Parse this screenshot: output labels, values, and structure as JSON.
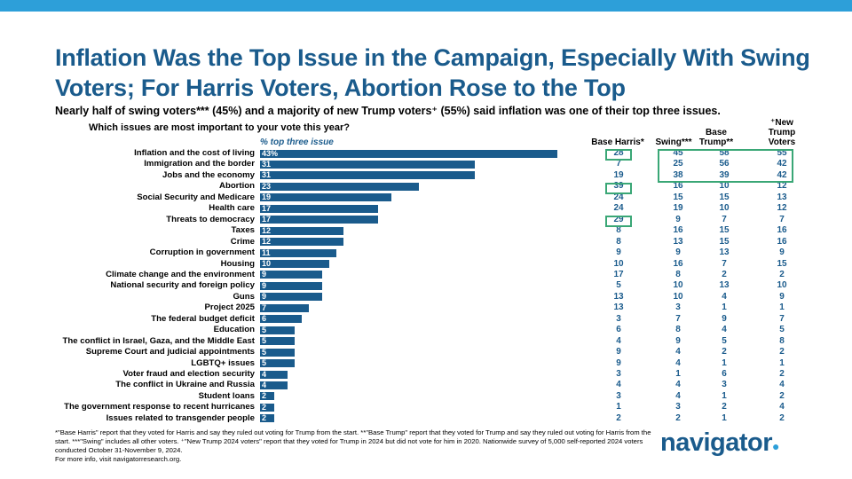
{
  "title": "Inflation Was the Top Issue in the Campaign, Especially With Swing Voters; For Harris Voters, Abortion Rose to the Top",
  "subtitle": "Nearly half of swing voters*** (45%) and a majority of new Trump voters⁺ (55%) said inflation was one of their top three issues.",
  "question": "Which issues are most important to your vote this year?",
  "bar_header": "% top three issue",
  "columns": {
    "base_harris": "Base Harris*",
    "swing": "Swing***",
    "base_trump_1": "Base",
    "base_trump_2": "Trump**",
    "new_trump_1": "⁺New",
    "new_trump_2": "Trump",
    "new_trump_3": "Voters"
  },
  "chart_data": {
    "type": "bar",
    "orientation": "horizontal",
    "xlim": [
      0,
      100
    ],
    "categories": [
      "Inflation and the cost of living",
      "Immigration and the border",
      "Jobs and the economy",
      "Abortion",
      "Social Security and Medicare",
      "Health care",
      "Threats to democracy",
      "Taxes",
      "Crime",
      "Corruption in government",
      "Housing",
      "Climate change and the environment",
      "National security and foreign policy",
      "Guns",
      "Project 2025",
      "The federal budget deficit",
      "Education",
      "The conflict in Israel, Gaza, and the Middle East",
      "Supreme Court and judicial appointments",
      "LGBTQ+ issues",
      "Voter fraud and election security",
      "The conflict in Ukraine and Russia",
      "Student loans",
      "The government response to recent hurricanes",
      "Issues related to transgender people"
    ],
    "bar_labels": [
      "43%",
      "31",
      "31",
      "23",
      "19",
      "17",
      "17",
      "12",
      "12",
      "11",
      "10",
      "9",
      "9",
      "9",
      "7",
      "6",
      "5",
      "5",
      "5",
      "5",
      "4",
      "4",
      "2",
      "2",
      "2"
    ],
    "values": [
      43,
      31,
      31,
      23,
      19,
      17,
      17,
      12,
      12,
      11,
      10,
      9,
      9,
      9,
      7,
      6,
      5,
      5,
      5,
      5,
      4,
      4,
      2,
      2,
      2
    ],
    "series": [
      {
        "name": "Base Harris*",
        "values": [
          28,
          7,
          19,
          39,
          24,
          24,
          29,
          8,
          8,
          9,
          10,
          17,
          5,
          13,
          13,
          3,
          6,
          4,
          9,
          9,
          3,
          4,
          3,
          1,
          2
        ]
      },
      {
        "name": "Swing***",
        "values": [
          45,
          25,
          38,
          16,
          15,
          19,
          9,
          16,
          13,
          9,
          16,
          8,
          10,
          10,
          3,
          7,
          8,
          9,
          4,
          4,
          1,
          4,
          4,
          3,
          2
        ]
      },
      {
        "name": "Base Trump**",
        "values": [
          58,
          56,
          39,
          10,
          15,
          10,
          7,
          15,
          15,
          13,
          7,
          2,
          13,
          4,
          1,
          9,
          4,
          5,
          2,
          1,
          6,
          3,
          1,
          2,
          1
        ]
      },
      {
        "name": "⁺New Trump Voters",
        "values": [
          55,
          42,
          42,
          12,
          13,
          12,
          7,
          16,
          16,
          9,
          15,
          2,
          10,
          9,
          1,
          7,
          5,
          8,
          2,
          1,
          2,
          4,
          2,
          4,
          2
        ]
      }
    ]
  },
  "footnote": {
    "line1": "*\"Base Harris\" report that they voted for Harris and say they ruled out voting for Trump from the start. **\"Base Trump\" report that they voted for Trump and say they ruled out voting for Harris from the start. ***\"Swing\" includes all other voters. ⁺\"New Trump 2024 voters\" report that they voted for Trump in 2024 but did not vote for him in 2020. Nationwide survey of 5,000 self-reported 2024 voters conducted October 31-November 9, 2024.",
    "line2": "For more info, visit navigatorresearch.org."
  },
  "logo": "navigator",
  "colors": {
    "bar": "#1a5b8c",
    "highlight_box": "#3aa776",
    "top_bar": "#2d9fd9",
    "title": "#1a5b8c"
  }
}
